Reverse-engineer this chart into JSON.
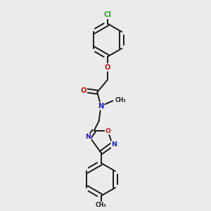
{
  "bg_color": "#ebebeb",
  "bond_color": "#1a1a1a",
  "bond_width": 1.4,
  "atom_colors": {
    "C": "#1a1a1a",
    "N": "#1a1acc",
    "O": "#cc1a1a",
    "Cl": "#22aa22"
  },
  "font_size": 7.2,
  "figsize": [
    3.0,
    3.0
  ],
  "dpi": 100
}
